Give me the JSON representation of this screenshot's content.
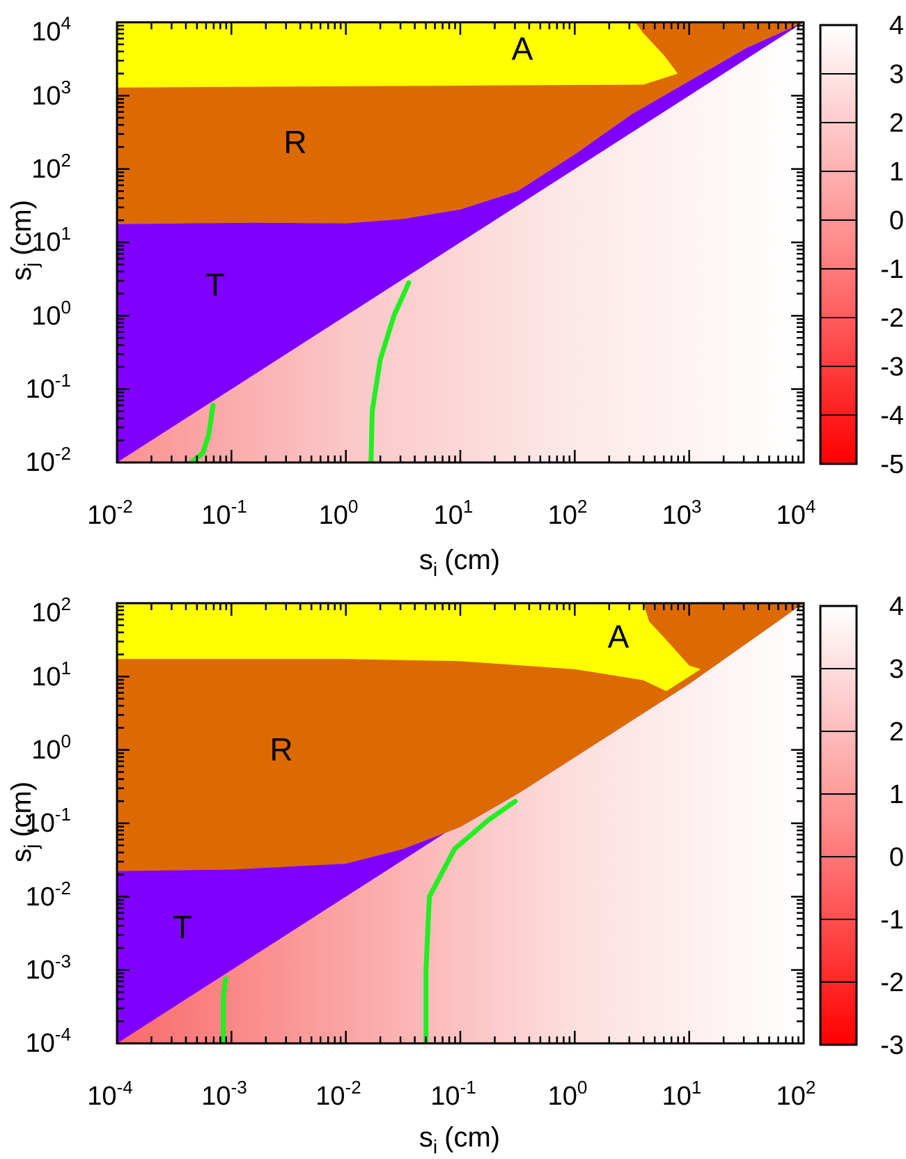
{
  "chart_data": [
    {
      "type": "heatmap",
      "panel": "top",
      "xlabel": {
        "base": "s",
        "sub": "i",
        "unit": "(cm)"
      },
      "ylabel": {
        "base": "s",
        "sub": "j",
        "unit": "(cm)"
      },
      "xscale": "log",
      "yscale": "log",
      "xlim_exp": [
        -2,
        4
      ],
      "ylim_exp": [
        -2,
        4
      ],
      "x_ticks": [
        {
          "base": "10",
          "exp": "-2"
        },
        {
          "base": "10",
          "exp": "-1"
        },
        {
          "base": "10",
          "exp": "0"
        },
        {
          "base": "10",
          "exp": "1"
        },
        {
          "base": "10",
          "exp": "2"
        },
        {
          "base": "10",
          "exp": "3"
        },
        {
          "base": "10",
          "exp": "4"
        }
      ],
      "y_ticks": [
        {
          "base": "10",
          "exp": "-2"
        },
        {
          "base": "10",
          "exp": "-1"
        },
        {
          "base": "10",
          "exp": "0"
        },
        {
          "base": "10",
          "exp": "1"
        },
        {
          "base": "10",
          "exp": "2"
        },
        {
          "base": "10",
          "exp": "3"
        },
        {
          "base": "10",
          "exp": "4"
        }
      ],
      "regions": [
        {
          "label": "A",
          "color": "#ffff00",
          "label_at": [
            2.6,
            3.6
          ]
        },
        {
          "label": "R",
          "color": "#dd6a00",
          "label_at": [
            -0.45,
            2.35
          ]
        },
        {
          "label": "T",
          "color": "#8000ff",
          "label_at": [
            -1.15,
            0.45
          ]
        }
      ],
      "boundaries_exp": {
        "yellow_lower": 3.11,
        "yellow_right": [
          [
            2.53,
            4.0
          ],
          [
            2.6,
            3.85
          ],
          [
            2.78,
            3.55
          ],
          [
            2.9,
            3.3
          ],
          [
            2.6,
            3.15
          ]
        ],
        "red_lower": [
          [
            -2.0,
            1.25
          ],
          [
            -0.8,
            1.27
          ],
          [
            0.0,
            1.26
          ],
          [
            0.5,
            1.32
          ],
          [
            1.0,
            1.45
          ],
          [
            1.5,
            1.7
          ],
          [
            2.0,
            2.2
          ],
          [
            2.5,
            2.75
          ],
          [
            3.0,
            3.2
          ],
          [
            3.5,
            3.65
          ],
          [
            4.0,
            4.0
          ]
        ]
      },
      "colorbar": {
        "ticks": [
          "4",
          "3",
          "2",
          "1",
          "0",
          "-1",
          "-2",
          "-3",
          "-4",
          "-5"
        ],
        "min": -5,
        "max": 4
      },
      "heatmap_gradient": {
        "value_at_xexp": [
          [
            -2,
            -0.6
          ],
          [
            0,
            1.4
          ],
          [
            2,
            3.2
          ],
          [
            4,
            3.9
          ]
        ]
      },
      "green_curves": [
        [
          [
            -1.35,
            -2.0
          ],
          [
            -1.25,
            -1.87
          ],
          [
            -1.2,
            -1.63
          ],
          [
            -1.16,
            -1.22
          ]
        ],
        [
          [
            0.22,
            -2.0
          ],
          [
            0.23,
            -1.3
          ],
          [
            0.3,
            -0.6
          ],
          [
            0.42,
            0.0
          ],
          [
            0.55,
            0.45
          ]
        ]
      ]
    },
    {
      "type": "heatmap",
      "panel": "bottom",
      "xlabel": {
        "base": "s",
        "sub": "i",
        "unit": "(cm)"
      },
      "ylabel": {
        "base": "s",
        "sub": "j",
        "unit": "(cm)"
      },
      "xscale": "log",
      "yscale": "log",
      "xlim_exp": [
        -4,
        2
      ],
      "ylim_exp": [
        -4,
        2
      ],
      "x_ticks": [
        {
          "base": "10",
          "exp": "-4"
        },
        {
          "base": "10",
          "exp": "-3"
        },
        {
          "base": "10",
          "exp": "-2"
        },
        {
          "base": "10",
          "exp": "-1"
        },
        {
          "base": "10",
          "exp": "0"
        },
        {
          "base": "10",
          "exp": "1"
        },
        {
          "base": "10",
          "exp": "2"
        }
      ],
      "y_ticks": [
        {
          "base": "10",
          "exp": "-4"
        },
        {
          "base": "10",
          "exp": "-3"
        },
        {
          "base": "10",
          "exp": "-2"
        },
        {
          "base": "10",
          "exp": "-1"
        },
        {
          "base": "10",
          "exp": "0"
        },
        {
          "base": "10",
          "exp": "1"
        },
        {
          "base": "10",
          "exp": "2"
        }
      ],
      "regions": [
        {
          "label": "A",
          "color": "#ffff00",
          "label_at": [
            0.4,
            1.55
          ]
        },
        {
          "label": "R",
          "color": "#dd6a00",
          "label_at": [
            -2.45,
            0.0
          ]
        },
        {
          "label": "T",
          "color": "#8000ff",
          "label_at": [
            -3.45,
            -2.4
          ]
        }
      ],
      "boundaries_exp": {
        "yellow_lower": [
          [
            -4.0,
            1.24
          ],
          [
            -2.0,
            1.24
          ],
          [
            -1.0,
            1.21
          ],
          [
            0.0,
            1.1
          ],
          [
            0.6,
            0.95
          ],
          [
            0.8,
            0.8
          ]
        ],
        "yellow_right": [
          [
            0.6,
            2.0
          ],
          [
            0.65,
            1.75
          ],
          [
            0.8,
            1.5
          ],
          [
            1.0,
            1.15
          ],
          [
            1.1,
            1.1
          ]
        ],
        "red_lower": [
          [
            -4.0,
            -1.65
          ],
          [
            -3.0,
            -1.63
          ],
          [
            -2.0,
            -1.55
          ],
          [
            -1.5,
            -1.35
          ],
          [
            -1.0,
            -1.05
          ],
          [
            -0.5,
            -0.6
          ],
          [
            0.0,
            -0.1
          ],
          [
            0.5,
            0.4
          ],
          [
            1.0,
            0.9
          ],
          [
            2.0,
            2.0
          ]
        ]
      },
      "colorbar": {
        "ticks": [
          "4",
          "3",
          "2",
          "1",
          "0",
          "-1",
          "-2",
          "-3"
        ],
        "min": -3,
        "max": 4
      },
      "heatmap_gradient": {
        "value_at_xexp": [
          [
            -4,
            -0.4
          ],
          [
            -2,
            1.2
          ],
          [
            0,
            2.8
          ],
          [
            2,
            3.9
          ]
        ]
      },
      "green_curves": [
        [
          [
            -3.07,
            -4.0
          ],
          [
            -3.07,
            -3.35
          ],
          [
            -3.05,
            -3.12
          ]
        ],
        [
          [
            -1.3,
            -4.0
          ],
          [
            -1.3,
            -3.0
          ],
          [
            -1.27,
            -2.0
          ],
          [
            -1.05,
            -1.35
          ],
          [
            -0.75,
            -0.95
          ],
          [
            -0.52,
            -0.7
          ]
        ]
      ]
    }
  ]
}
